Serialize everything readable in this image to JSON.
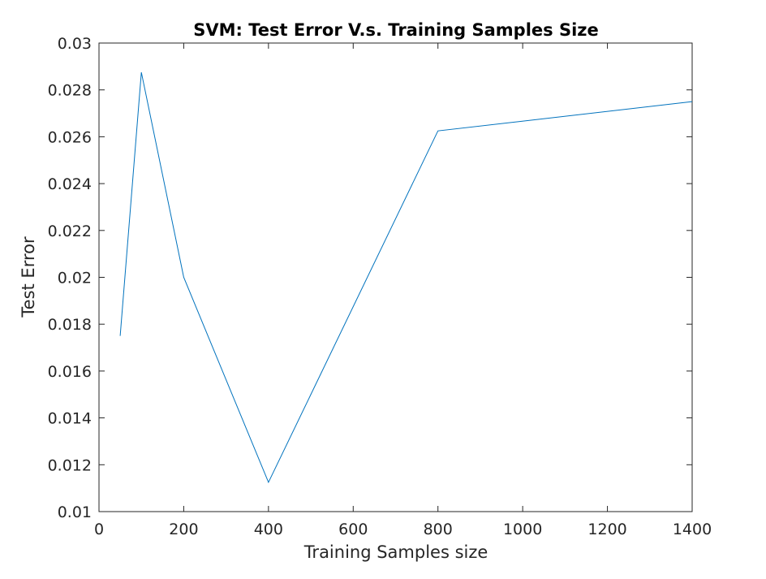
{
  "chart_data": {
    "type": "line",
    "title": "SVM: Test Error V.s. Training Samples Size",
    "xlabel": "Training Samples size",
    "ylabel": "Test Error",
    "xlim": [
      0,
      1400
    ],
    "ylim": [
      0.01,
      0.03
    ],
    "xticks": [
      0,
      200,
      400,
      600,
      800,
      1000,
      1200,
      1400
    ],
    "xtick_labels": [
      "0",
      "200",
      "400",
      "600",
      "800",
      "1000",
      "1200",
      "1400"
    ],
    "yticks": [
      0.01,
      0.012,
      0.014,
      0.016,
      0.018,
      0.02,
      0.022,
      0.024,
      0.026,
      0.028,
      0.03
    ],
    "ytick_labels": [
      "0.01",
      "0.012",
      "0.014",
      "0.016",
      "0.018",
      "0.02",
      "0.022",
      "0.024",
      "0.026",
      "0.028",
      "0.03"
    ],
    "grid": false,
    "box": true,
    "line_color": "#0072BD",
    "axis_color": "#262626",
    "series": [
      {
        "x": [
          50,
          100,
          200,
          400,
          800,
          1400
        ],
        "y": [
          0.0175,
          0.02875,
          0.02,
          0.01125,
          0.02625,
          0.0275
        ]
      }
    ]
  }
}
